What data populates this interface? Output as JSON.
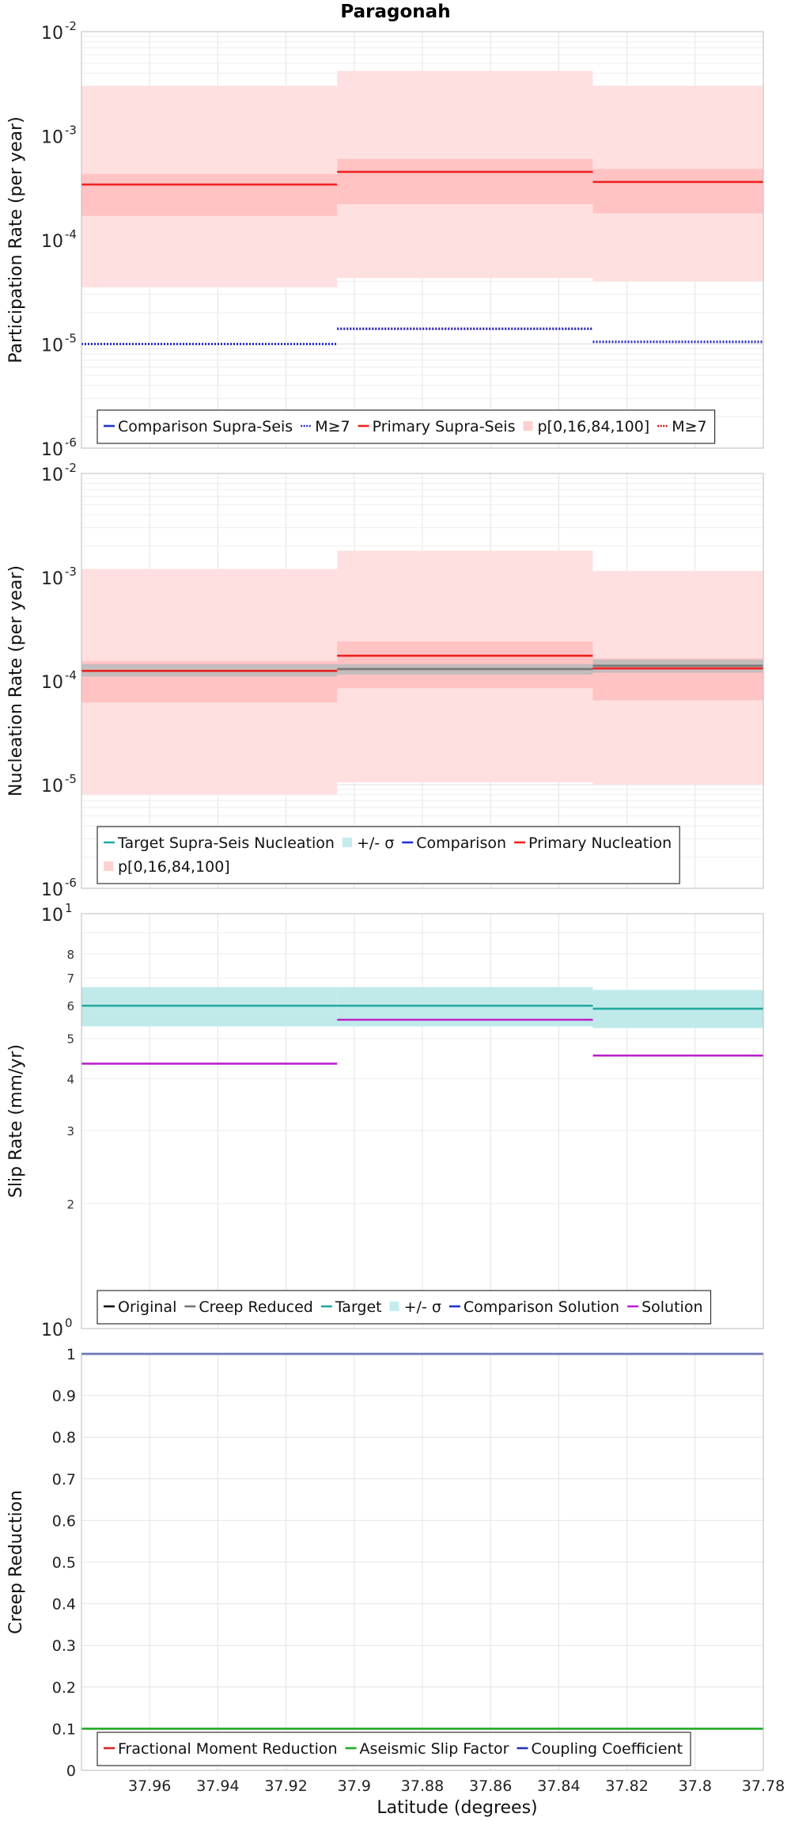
{
  "figure_title": "Paragonah",
  "xlabel": "Latitude (degrees)",
  "chart_data": [
    {
      "type": "step-line",
      "panel": "participation",
      "ylabel": "Participation Rate (per year)",
      "yscale": "log",
      "ylim": [
        1e-06,
        0.01
      ],
      "xlim": [
        37.98,
        37.78
      ],
      "x_ticks": [
        "37.96",
        "37.94",
        "37.92",
        "37.9",
        "37.88",
        "37.86",
        "37.84",
        "37.82",
        "37.8",
        "37.78"
      ],
      "y_ticks": [
        {
          "base": "10",
          "exp": "-6"
        },
        {
          "base": "10",
          "exp": "-5"
        },
        {
          "base": "10",
          "exp": "-4"
        },
        {
          "base": "10",
          "exp": "-3"
        },
        {
          "base": "10",
          "exp": "-2"
        }
      ],
      "segments": [
        [
          37.98,
          37.905
        ],
        [
          37.905,
          37.83
        ],
        [
          37.83,
          37.78
        ]
      ],
      "bands": [
        {
          "name": "p[0,16,84,100] outer",
          "color": "#ffe0e0",
          "low": [
            3.5e-05,
            4.3e-05,
            4e-05
          ],
          "high": [
            0.003,
            0.0042,
            0.003
          ]
        },
        {
          "name": "p[0,16,84,100] inner",
          "color": "#ffc3c3",
          "low": [
            0.00017,
            0.00022,
            0.00018
          ],
          "high": [
            0.00043,
            0.0006,
            0.00048
          ]
        }
      ],
      "series": [
        {
          "name": "Primary Supra-Seis",
          "color": "#ee2222",
          "style": "solid",
          "values": [
            0.00034,
            0.00045,
            0.00036
          ]
        },
        {
          "name": "M≥7 (primary)",
          "color": "#cc1111",
          "style": "dotted",
          "values": [
            1e-05,
            1.4e-05,
            1.05e-05
          ]
        },
        {
          "name": "M≥7 (comparison)",
          "color": "#2233cc",
          "style": "dotted",
          "values": [
            1e-05,
            1.4e-05,
            1.05e-05
          ]
        }
      ],
      "legend": {
        "position": "bottom",
        "rows": [
          [
            {
              "label": "Comparison Supra-Seis",
              "kind": "line",
              "color": "#2233cc"
            },
            {
              "label": "M≥7",
              "kind": "dotted",
              "color": "#2233cc"
            },
            {
              "label": "Primary Supra-Seis",
              "kind": "line",
              "color": "#ee2222"
            },
            {
              "label": "p[0,16,84,100]",
              "kind": "patch",
              "color": "#ffd0d0"
            },
            {
              "label": "M≥7",
              "kind": "dotted",
              "color": "#cc1111"
            }
          ]
        ]
      }
    },
    {
      "type": "step-line",
      "panel": "nucleation",
      "ylabel": "Nucleation Rate (per year)",
      "yscale": "log",
      "ylim": [
        1e-06,
        0.01
      ],
      "xlim": [
        37.98,
        37.78
      ],
      "y_ticks": [
        {
          "base": "10",
          "exp": "-6"
        },
        {
          "base": "10",
          "exp": "-5"
        },
        {
          "base": "10",
          "exp": "-4"
        },
        {
          "base": "10",
          "exp": "-3"
        },
        {
          "base": "10",
          "exp": "-2"
        }
      ],
      "segments": [
        [
          37.98,
          37.905
        ],
        [
          37.905,
          37.83
        ],
        [
          37.83,
          37.78
        ]
      ],
      "bands": [
        {
          "name": "p[0,16,84,100] outer",
          "color": "#ffe0e0",
          "low": [
            8e-06,
            1.05e-05,
            1e-05
          ],
          "high": [
            0.0012,
            0.0018,
            0.00115
          ]
        },
        {
          "name": "p[0,16,84,100] inner",
          "color": "#ffc3c3",
          "low": [
            6.2e-05,
            8.5e-05,
            6.5e-05
          ],
          "high": [
            0.000155,
            0.00024,
            0.000165
          ]
        },
        {
          "name": "+/- σ",
          "color": "#bbbbbb",
          "opacity": 0.85,
          "low": [
            0.00011,
            0.000115,
            0.00012
          ],
          "high": [
            0.000145,
            0.000145,
            0.00016
          ]
        }
      ],
      "series": [
        {
          "name": "Target Supra-Seis Nucleation",
          "color": "#777777",
          "style": "solid",
          "values": [
            0.000125,
            0.00013,
            0.00014
          ]
        },
        {
          "name": "Primary Nucleation",
          "color": "#ee2222",
          "style": "solid",
          "values": [
            0.000125,
            0.000175,
            0.000132
          ]
        }
      ],
      "legend": {
        "position": "bottom",
        "rows": [
          [
            {
              "label": "Target Supra-Seis Nucleation",
              "kind": "line",
              "color": "#22aaaa"
            },
            {
              "label": "+/- σ",
              "kind": "patch",
              "color": "#c4ecec"
            },
            {
              "label": "Comparison",
              "kind": "line",
              "color": "#2233cc"
            },
            {
              "label": "Primary Nucleation",
              "kind": "line",
              "color": "#ee2222"
            }
          ],
          [
            {
              "label": "p[0,16,84,100]",
              "kind": "patch",
              "color": "#ffd0d0"
            }
          ]
        ]
      }
    },
    {
      "type": "step-line",
      "panel": "slip",
      "ylabel": "Slip Rate (mm/yr)",
      "yscale": "log",
      "ylim": [
        1,
        10
      ],
      "xlim": [
        37.98,
        37.78
      ],
      "y_ticks": [
        {
          "base": "10",
          "exp": "0"
        },
        {
          "base": "10",
          "exp": "1"
        }
      ],
      "y_minor_labels": [
        "2",
        "3",
        "4",
        "5",
        "6",
        "7",
        "8"
      ],
      "y_minor_values": [
        2,
        3,
        4,
        5,
        6,
        7,
        8
      ],
      "segments": [
        [
          37.98,
          37.905
        ],
        [
          37.905,
          37.83
        ],
        [
          37.83,
          37.78
        ]
      ],
      "bands": [
        {
          "name": "+/- σ",
          "color": "#c0eaea",
          "low": [
            5.35,
            5.35,
            5.3
          ],
          "high": [
            6.65,
            6.65,
            6.55
          ]
        }
      ],
      "series": [
        {
          "name": "Target",
          "color": "#22aaa0",
          "style": "solid",
          "values": [
            6.0,
            6.0,
            5.9
          ]
        },
        {
          "name": "Solution",
          "color": "#bb22cc",
          "style": "solid",
          "values": [
            4.35,
            5.55,
            4.55
          ]
        }
      ],
      "legend": {
        "position": "bottom",
        "rows": [
          [
            {
              "label": "Original",
              "kind": "line",
              "color": "#111111"
            },
            {
              "label": "Creep Reduced",
              "kind": "line",
              "color": "#777777"
            },
            {
              "label": "Target",
              "kind": "line",
              "color": "#22aaa0"
            },
            {
              "label": "+/- σ",
              "kind": "patch",
              "color": "#c4ecec"
            },
            {
              "label": "Comparison Solution",
              "kind": "line",
              "color": "#2233cc"
            },
            {
              "label": "Solution",
              "kind": "line",
              "color": "#bb22cc"
            }
          ]
        ]
      }
    },
    {
      "type": "line",
      "panel": "creep",
      "ylabel": "Creep Reduction",
      "yscale": "linear",
      "ylim": [
        0,
        1
      ],
      "xlim": [
        37.98,
        37.78
      ],
      "y_ticks": [
        "0",
        "0.1",
        "0.2",
        "0.3",
        "0.4",
        "0.5",
        "0.6",
        "0.7",
        "0.8",
        "0.9",
        "1"
      ],
      "series": [
        {
          "name": "Coupling Coefficient",
          "color": "#2233aa",
          "style": "solid",
          "values": [
            1.0,
            1.0
          ]
        },
        {
          "name": "Aseismic Slip Factor",
          "color": "#22aa22",
          "style": "solid",
          "values": [
            0.1,
            0.1
          ]
        }
      ],
      "legend": {
        "position": "bottom",
        "rows": [
          [
            {
              "label": "Fractional Moment Reduction",
              "kind": "line",
              "color": "#dd2222"
            },
            {
              "label": "Aseismic Slip Factor",
              "kind": "line",
              "color": "#22aa22"
            },
            {
              "label": "Coupling Coefficient",
              "kind": "line",
              "color": "#2233aa"
            }
          ]
        ]
      }
    }
  ]
}
